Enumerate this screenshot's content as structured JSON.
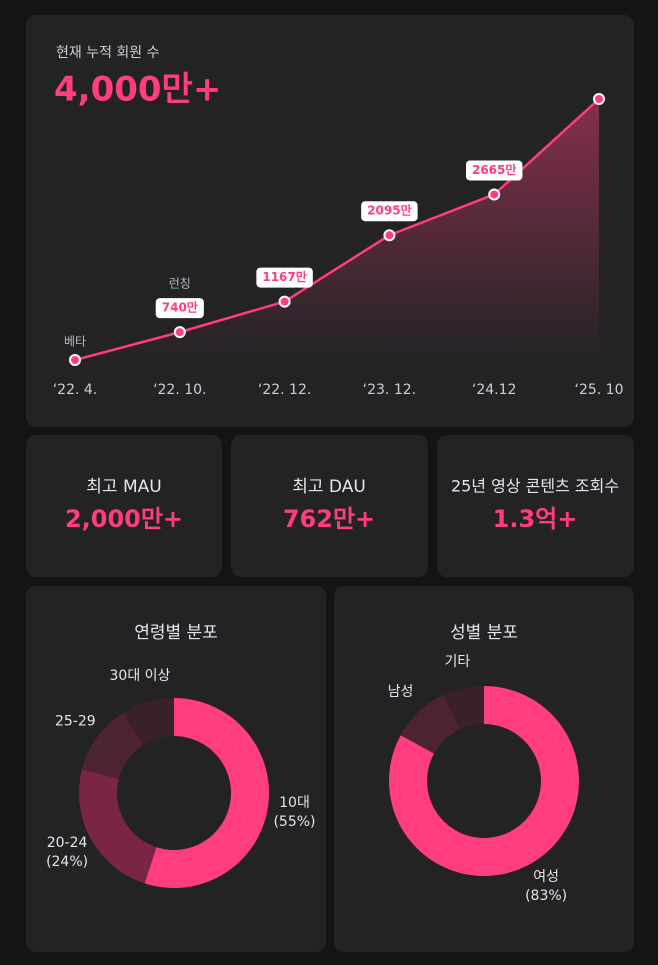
{
  "chart_data": [
    {
      "type": "line",
      "title": "현재 누적 회원 수",
      "headline": "4,000만+",
      "categories": [
        "‘22. 4.",
        "‘22. 10.",
        "‘22. 12.",
        "‘23. 12.",
        "‘24.12",
        "‘25. 10"
      ],
      "values": [
        350,
        740,
        1167,
        2095,
        2665,
        4000
      ],
      "value_labels": [
        null,
        "740만",
        "1167만",
        "2095만",
        "2665만",
        null
      ],
      "point_notes": [
        "베타",
        "런칭",
        null,
        null,
        null,
        null
      ],
      "color": "#ff3d7f"
    },
    {
      "type": "donut",
      "title": "연령별 분포",
      "categories": [
        "10대",
        "20-24",
        "25-29",
        "30대 이상"
      ],
      "values": [
        55,
        24,
        12,
        9
      ],
      "value_labels": [
        "(55%)",
        "(24%)",
        null,
        null
      ],
      "colors": [
        "#ff3d7f",
        "#7a2548",
        "#4d2233",
        "#3a2029"
      ]
    },
    {
      "type": "donut",
      "title": "성별 분포",
      "categories": [
        "여성",
        "남성",
        "기타"
      ],
      "values": [
        83,
        10,
        7
      ],
      "value_labels": [
        "(83%)",
        null,
        null
      ],
      "colors": [
        "#ff3d7f",
        "#4d2233",
        "#3a2029"
      ]
    }
  ],
  "stats": [
    {
      "label": "최고 MAU",
      "value": "2,000만+"
    },
    {
      "label": "최고 DAU",
      "value": "762만+"
    },
    {
      "label": "25년 영상 콘텐츠 조회수",
      "value": "1.3억+"
    }
  ]
}
